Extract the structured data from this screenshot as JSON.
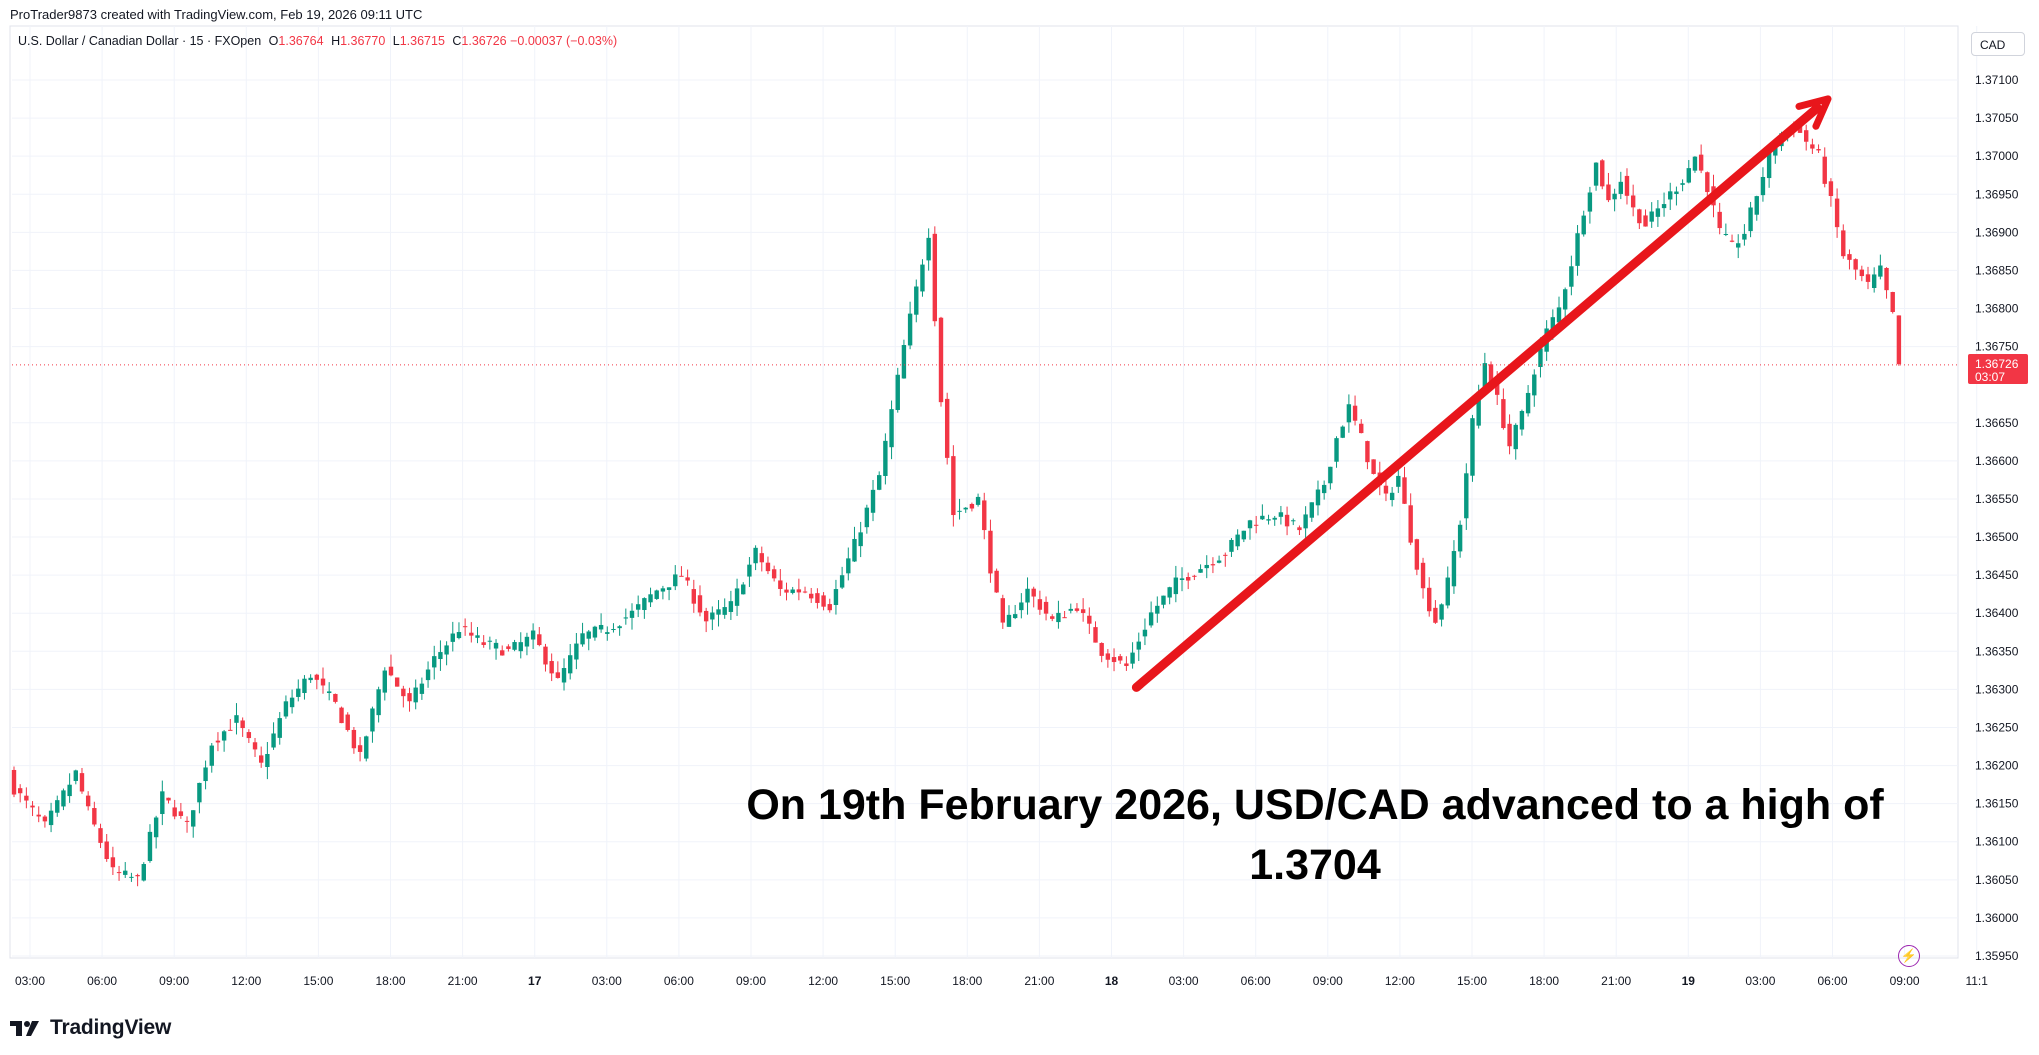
{
  "header": {
    "creator": "ProTrader9873 created with TradingView.com, Feb 19, 2026 09:11 UTC"
  },
  "legend": {
    "symbol": "U.S. Dollar / Canadian Dollar · 15 · FXOpen",
    "open_label": "O",
    "open": "1.36764",
    "high_label": "H",
    "high": "1.36770",
    "low_label": "L",
    "low": "1.36715",
    "close_label": "C",
    "close": "1.36726",
    "change": "−0.00037 (−0.03%)"
  },
  "currency": "CAD",
  "price_tag": {
    "price": "1.36726",
    "countdown": "03:07"
  },
  "annotation": {
    "text": "On 19th February 2026, USD/CAD advanced to a high of 1.3704"
  },
  "brand": {
    "name": "TradingView",
    "logo_icon": "tradingview-logo-icon"
  },
  "flash_icon": "lightning-icon",
  "colors": {
    "up": "#089981",
    "down": "#f23645",
    "arrow": "#e8161b",
    "price_line": "#f23645"
  },
  "chart_data": {
    "type": "candlestick",
    "title": "",
    "symbol": "USD/CAD",
    "interval": "15",
    "ylim": [
      1.3593,
      1.3713
    ],
    "y_ticks": [
      "1.37100",
      "1.37050",
      "1.37000",
      "1.36950",
      "1.36900",
      "1.36850",
      "1.36800",
      "1.36750",
      "1.36650",
      "1.36600",
      "1.36550",
      "1.36500",
      "1.36450",
      "1.36400",
      "1.36350",
      "1.36300",
      "1.36250",
      "1.36200",
      "1.36150",
      "1.36100",
      "1.36050",
      "1.36000",
      "1.35950"
    ],
    "x_ticks": [
      "03:00",
      "06:00",
      "09:00",
      "12:00",
      "15:00",
      "18:00",
      "21:00",
      "17",
      "03:00",
      "06:00",
      "09:00",
      "12:00",
      "15:00",
      "18:00",
      "21:00",
      "18",
      "03:00",
      "06:00",
      "09:00",
      "12:00",
      "15:00",
      "18:00",
      "21:00",
      "19",
      "03:00",
      "06:00",
      "09:00",
      "11:1"
    ],
    "grid": true,
    "current_price": 1.36726,
    "price_path": [
      [
        0,
        1.3617
      ],
      [
        5,
        1.3612
      ],
      [
        10,
        1.3619
      ],
      [
        12,
        1.3614
      ],
      [
        16,
        1.3606
      ],
      [
        20,
        1.3605
      ],
      [
        24,
        1.3616
      ],
      [
        28,
        1.3612
      ],
      [
        32,
        1.3623
      ],
      [
        36,
        1.3626
      ],
      [
        40,
        1.362
      ],
      [
        44,
        1.3628
      ],
      [
        48,
        1.3632
      ],
      [
        52,
        1.3628
      ],
      [
        56,
        1.3621
      ],
      [
        60,
        1.3633
      ],
      [
        64,
        1.3628
      ],
      [
        68,
        1.3634
      ],
      [
        72,
        1.3638
      ],
      [
        76,
        1.3636
      ],
      [
        80,
        1.3635
      ],
      [
        84,
        1.3637
      ],
      [
        88,
        1.3631
      ],
      [
        92,
        1.3637
      ],
      [
        96,
        1.3638
      ],
      [
        100,
        1.364
      ],
      [
        104,
        1.3643
      ],
      [
        108,
        1.3645
      ],
      [
        112,
        1.3639
      ],
      [
        116,
        1.3641
      ],
      [
        120,
        1.3648
      ],
      [
        124,
        1.3643
      ],
      [
        128,
        1.3643
      ],
      [
        132,
        1.3641
      ],
      [
        136,
        1.3649
      ],
      [
        140,
        1.3658
      ],
      [
        144,
        1.3675
      ],
      [
        148,
        1.369
      ],
      [
        150,
        1.3668
      ],
      [
        152,
        1.3653
      ],
      [
        156,
        1.3655
      ],
      [
        158,
        1.3646
      ],
      [
        160,
        1.3638
      ],
      [
        164,
        1.3643
      ],
      [
        168,
        1.3639
      ],
      [
        172,
        1.3641
      ],
      [
        176,
        1.3635
      ],
      [
        180,
        1.3633
      ],
      [
        184,
        1.364
      ],
      [
        188,
        1.3644
      ],
      [
        192,
        1.3646
      ],
      [
        196,
        1.3648
      ],
      [
        200,
        1.3652
      ],
      [
        204,
        1.3653
      ],
      [
        208,
        1.3651
      ],
      [
        212,
        1.3657
      ],
      [
        214,
        1.3663
      ],
      [
        216,
        1.3667
      ],
      [
        218,
        1.3663
      ],
      [
        220,
        1.3658
      ],
      [
        222,
        1.3655
      ],
      [
        224,
        1.3658
      ],
      [
        226,
        1.365
      ],
      [
        228,
        1.3643
      ],
      [
        230,
        1.3639
      ],
      [
        232,
        1.3644
      ],
      [
        234,
        1.3652
      ],
      [
        236,
        1.3665
      ],
      [
        238,
        1.3673
      ],
      [
        240,
        1.3668
      ],
      [
        242,
        1.3662
      ],
      [
        244,
        1.3666
      ],
      [
        246,
        1.3672
      ],
      [
        248,
        1.3677
      ],
      [
        250,
        1.368
      ],
      [
        252,
        1.3686
      ],
      [
        254,
        1.3693
      ],
      [
        256,
        1.3699
      ],
      [
        258,
        1.3694
      ],
      [
        260,
        1.3697
      ],
      [
        262,
        1.3693
      ],
      [
        264,
        1.3691
      ],
      [
        266,
        1.3693
      ],
      [
        268,
        1.3695
      ],
      [
        270,
        1.3697
      ],
      [
        272,
        1.37
      ],
      [
        274,
        1.3696
      ],
      [
        276,
        1.369
      ],
      [
        278,
        1.3688
      ],
      [
        280,
        1.369
      ],
      [
        282,
        1.3695
      ],
      [
        284,
        1.37
      ],
      [
        286,
        1.3703
      ],
      [
        288,
        1.3704
      ],
      [
        290,
        1.3702
      ],
      [
        292,
        1.37
      ],
      [
        294,
        1.3694
      ],
      [
        296,
        1.3687
      ],
      [
        298,
        1.3685
      ],
      [
        300,
        1.3683
      ],
      [
        302,
        1.3685
      ],
      [
        304,
        1.3679
      ],
      [
        305,
        1.36726
      ]
    ],
    "annotations": [
      {
        "type": "arrow",
        "from": [
          191,
          1.363
        ],
        "to": [
          289,
          1.3707
        ]
      }
    ]
  }
}
